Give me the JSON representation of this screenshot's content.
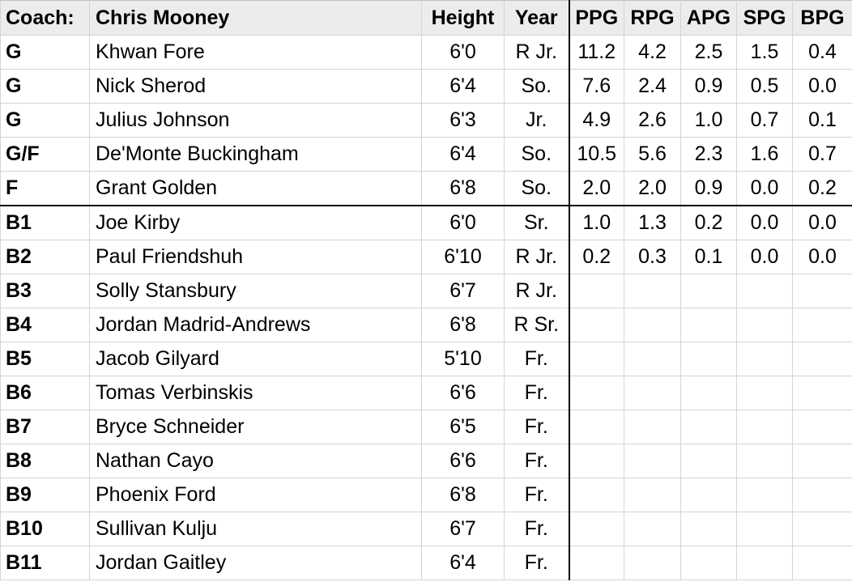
{
  "header": {
    "coach_label": "Coach:",
    "coach_name": "Chris Mooney",
    "height": "Height",
    "year": "Year",
    "ppg": "PPG",
    "rpg": "RPG",
    "apg": "APG",
    "spg": "SPG",
    "bpg": "BPG"
  },
  "rows": [
    {
      "pos": "G",
      "name": "Khwan Fore",
      "height": "6'0",
      "year": "R Jr.",
      "ppg": "11.2",
      "rpg": "4.2",
      "apg": "2.5",
      "spg": "1.5",
      "bpg": "0.4"
    },
    {
      "pos": "G",
      "name": "Nick Sherod",
      "height": "6'4",
      "year": "So.",
      "ppg": "7.6",
      "rpg": "2.4",
      "apg": "0.9",
      "spg": "0.5",
      "bpg": "0.0"
    },
    {
      "pos": "G",
      "name": "Julius Johnson",
      "height": "6'3",
      "year": "Jr.",
      "ppg": "4.9",
      "rpg": "2.6",
      "apg": "1.0",
      "spg": "0.7",
      "bpg": "0.1"
    },
    {
      "pos": "G/F",
      "name": "De'Monte Buckingham",
      "height": "6'4",
      "year": "So.",
      "ppg": "10.5",
      "rpg": "5.6",
      "apg": "2.3",
      "spg": "1.6",
      "bpg": "0.7"
    },
    {
      "pos": "F",
      "name": "Grant Golden",
      "height": "6'8",
      "year": "So.",
      "ppg": "2.0",
      "rpg": "2.0",
      "apg": "0.9",
      "spg": "0.0",
      "bpg": "0.2"
    },
    {
      "pos": "B1",
      "name": "Joe Kirby",
      "height": "6'0",
      "year": "Sr.",
      "ppg": "1.0",
      "rpg": "1.3",
      "apg": "0.2",
      "spg": "0.0",
      "bpg": "0.0"
    },
    {
      "pos": "B2",
      "name": "Paul Friendshuh",
      "height": "6'10",
      "year": "R Jr.",
      "ppg": "0.2",
      "rpg": "0.3",
      "apg": "0.1",
      "spg": "0.0",
      "bpg": "0.0"
    },
    {
      "pos": "B3",
      "name": "Solly Stansbury",
      "height": "6'7",
      "year": "R Jr.",
      "ppg": "",
      "rpg": "",
      "apg": "",
      "spg": "",
      "bpg": ""
    },
    {
      "pos": "B4",
      "name": "Jordan Madrid-Andrews",
      "height": "6'8",
      "year": "R Sr.",
      "ppg": "",
      "rpg": "",
      "apg": "",
      "spg": "",
      "bpg": ""
    },
    {
      "pos": "B5",
      "name": "Jacob Gilyard",
      "height": "5'10",
      "year": "Fr.",
      "ppg": "",
      "rpg": "",
      "apg": "",
      "spg": "",
      "bpg": ""
    },
    {
      "pos": "B6",
      "name": "Tomas Verbinskis",
      "height": "6'6",
      "year": "Fr.",
      "ppg": "",
      "rpg": "",
      "apg": "",
      "spg": "",
      "bpg": ""
    },
    {
      "pos": "B7",
      "name": "Bryce Schneider",
      "height": "6'5",
      "year": "Fr.",
      "ppg": "",
      "rpg": "",
      "apg": "",
      "spg": "",
      "bpg": ""
    },
    {
      "pos": "B8",
      "name": "Nathan Cayo",
      "height": "6'6",
      "year": "Fr.",
      "ppg": "",
      "rpg": "",
      "apg": "",
      "spg": "",
      "bpg": ""
    },
    {
      "pos": "B9",
      "name": "Phoenix Ford",
      "height": "6'8",
      "year": "Fr.",
      "ppg": "",
      "rpg": "",
      "apg": "",
      "spg": "",
      "bpg": ""
    },
    {
      "pos": "B10",
      "name": "Sullivan Kulju",
      "height": "6'7",
      "year": "Fr.",
      "ppg": "",
      "rpg": "",
      "apg": "",
      "spg": "",
      "bpg": ""
    },
    {
      "pos": "B11",
      "name": "Jordan Gaitley",
      "height": "6'4",
      "year": "Fr.",
      "ppg": "",
      "rpg": "",
      "apg": "",
      "spg": "",
      "bpg": ""
    }
  ]
}
